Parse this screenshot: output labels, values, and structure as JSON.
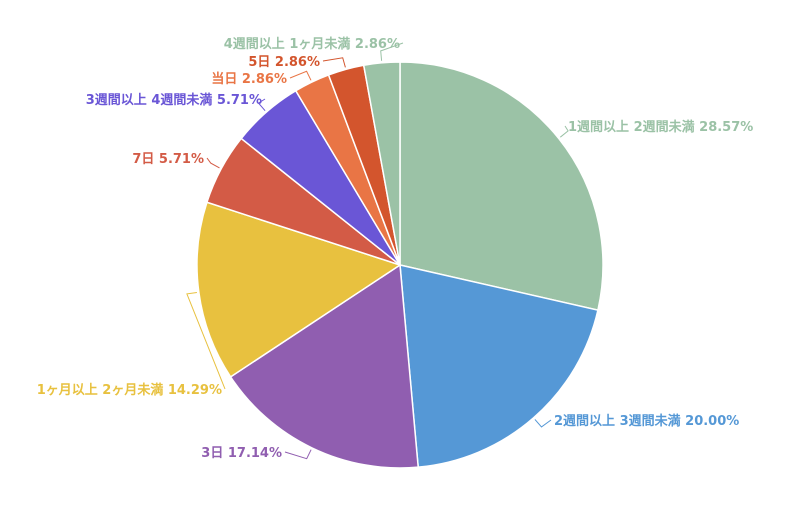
{
  "chart_data": {
    "type": "pie",
    "start_angle_deg": 0,
    "direction": "clockwise",
    "slices": [
      {
        "label": "1週間以上 2週間未満",
        "value": 28.57,
        "color": "#9bc2a6"
      },
      {
        "label": "2週間以上 3週間未満",
        "value": 20.0,
        "color": "#5598d6"
      },
      {
        "label": "3日",
        "value": 17.14,
        "color": "#905eb0"
      },
      {
        "label": "1ヶ月以上 2ヶ月未満",
        "value": 14.29,
        "color": "#e8c13f"
      },
      {
        "label": "7日",
        "value": 5.71,
        "color": "#d35b46"
      },
      {
        "label": "3週間以上 4週間未満",
        "value": 5.71,
        "color": "#6a56d6"
      },
      {
        "label": "当日",
        "value": 2.86,
        "color": "#e97545"
      },
      {
        "label": "5日",
        "value": 2.86,
        "color": "#d3552d"
      },
      {
        "label": "4週間以上 1ヶ月未満",
        "value": 2.86,
        "color": "#9bc2a6"
      }
    ]
  }
}
